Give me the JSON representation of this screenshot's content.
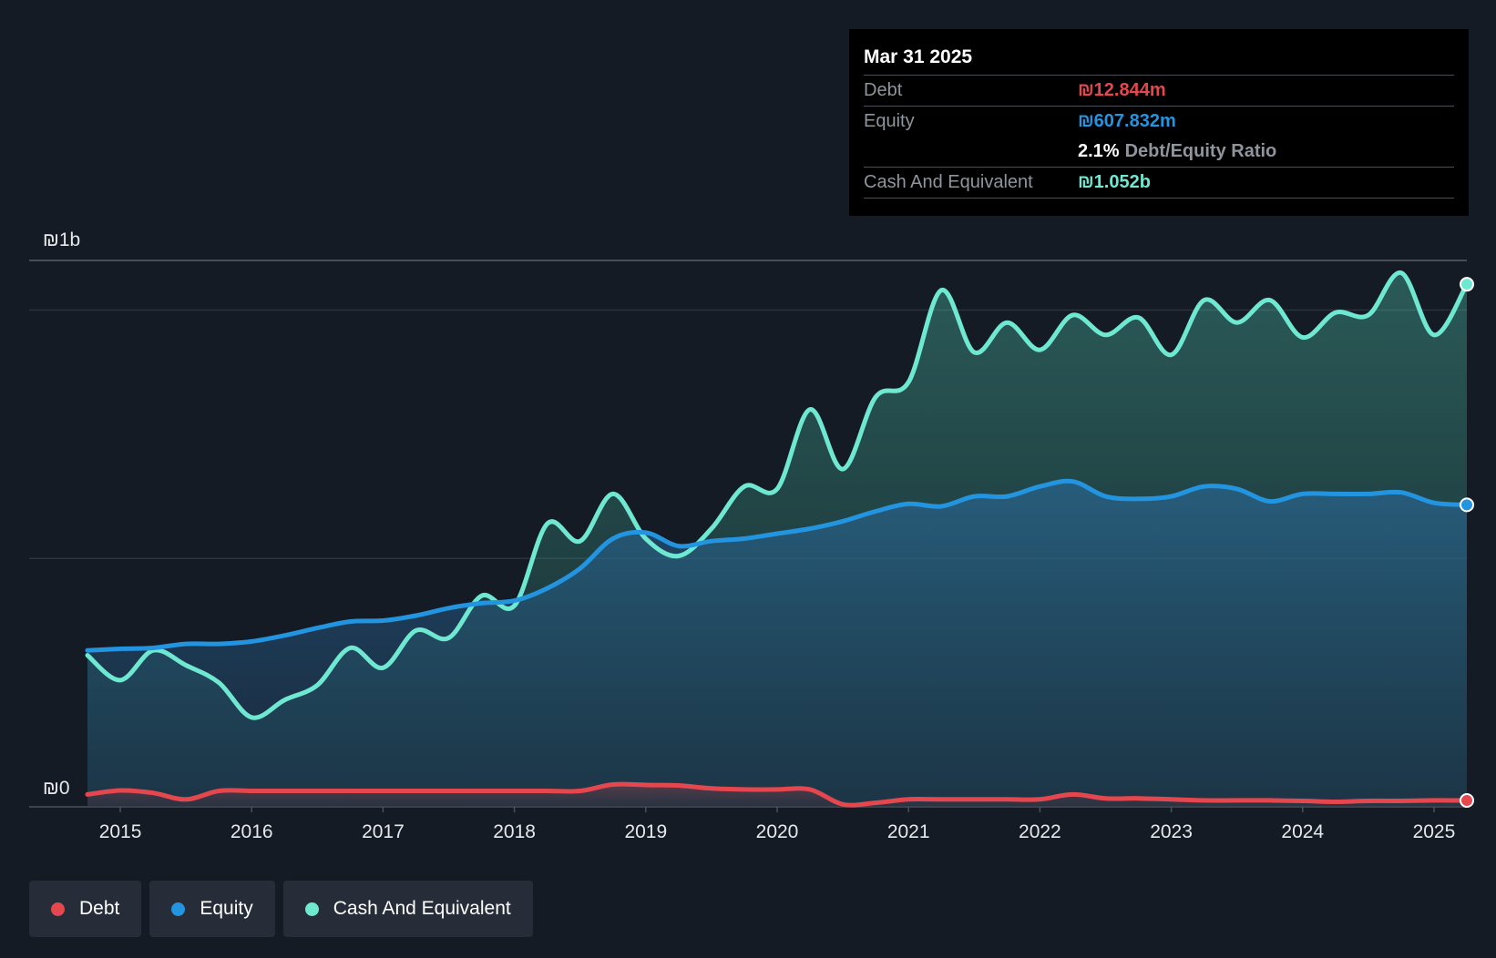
{
  "tooltip": {
    "date": "Mar 31 2025",
    "debt_label": "Debt",
    "debt_value": "₪12.844m",
    "equity_label": "Equity",
    "equity_value": "₪607.832m",
    "ratio_pct": "2.1%",
    "ratio_label": "Debt/Equity Ratio",
    "cash_label": "Cash And Equivalent",
    "cash_value": "₪1.052b"
  },
  "legend": {
    "debt": "Debt",
    "equity": "Equity",
    "cash": "Cash And Equivalent"
  },
  "colors": {
    "background": "#151b24",
    "debt": "#e5474f",
    "equity": "#2394df",
    "cash": "#6fe8d2"
  },
  "chart_data": {
    "type": "area",
    "title": "",
    "xlabel": "",
    "ylabel": "",
    "y_unit": "₪m",
    "ylim": [
      0,
      1100
    ],
    "y_tick_labels": [
      {
        "value": 0,
        "label": "₪0"
      },
      {
        "value": 1100,
        "label": "₪1b"
      }
    ],
    "gridlines": [
      500,
      1000,
      1100
    ],
    "xlim": [
      2014.75,
      2025.25
    ],
    "x_ticks": [
      2015,
      2016,
      2017,
      2018,
      2019,
      2020,
      2021,
      2022,
      2023,
      2024,
      2025
    ],
    "series": [
      {
        "name": "Cash And Equivalent",
        "color": "#6fe8d2",
        "x": [
          2014.75,
          2015.0,
          2015.25,
          2015.5,
          2015.75,
          2016.0,
          2016.25,
          2016.5,
          2016.75,
          2017.0,
          2017.25,
          2017.5,
          2017.75,
          2018.0,
          2018.25,
          2018.5,
          2018.75,
          2019.0,
          2019.25,
          2019.5,
          2019.75,
          2020.0,
          2020.25,
          2020.5,
          2020.75,
          2021.0,
          2021.25,
          2021.5,
          2021.75,
          2022.0,
          2022.25,
          2022.5,
          2022.75,
          2023.0,
          2023.25,
          2023.5,
          2023.75,
          2024.0,
          2024.25,
          2024.5,
          2024.75,
          2025.0,
          2025.25
        ],
        "values": [
          305,
          255,
          315,
          285,
          250,
          180,
          215,
          245,
          320,
          280,
          355,
          340,
          425,
          405,
          570,
          535,
          630,
          540,
          505,
          560,
          645,
          640,
          800,
          680,
          825,
          855,
          1040,
          915,
          975,
          920,
          990,
          950,
          985,
          910,
          1020,
          975,
          1020,
          945,
          995,
          990,
          1075,
          950,
          1052
        ]
      },
      {
        "name": "Equity",
        "color": "#2394df",
        "x": [
          2014.75,
          2015.0,
          2015.25,
          2015.5,
          2015.75,
          2016.0,
          2016.25,
          2016.5,
          2016.75,
          2017.0,
          2017.25,
          2017.5,
          2017.75,
          2018.0,
          2018.25,
          2018.5,
          2018.75,
          2019.0,
          2019.25,
          2019.5,
          2019.75,
          2020.0,
          2020.25,
          2020.5,
          2020.75,
          2021.0,
          2021.25,
          2021.5,
          2021.75,
          2022.0,
          2022.25,
          2022.5,
          2022.75,
          2023.0,
          2023.25,
          2023.5,
          2023.75,
          2024.0,
          2024.25,
          2024.5,
          2024.75,
          2025.0,
          2025.25
        ],
        "values": [
          315,
          318,
          320,
          328,
          328,
          333,
          345,
          360,
          373,
          375,
          385,
          400,
          410,
          415,
          440,
          480,
          540,
          552,
          525,
          535,
          540,
          550,
          560,
          575,
          595,
          610,
          605,
          625,
          625,
          645,
          655,
          625,
          620,
          625,
          645,
          640,
          615,
          630,
          630,
          630,
          633,
          612,
          608
        ]
      },
      {
        "name": "Debt",
        "color": "#e5474f",
        "x": [
          2014.75,
          2015.0,
          2015.25,
          2015.5,
          2015.75,
          2016.0,
          2016.25,
          2016.5,
          2016.75,
          2017.0,
          2017.25,
          2017.5,
          2017.75,
          2018.0,
          2018.25,
          2018.5,
          2018.75,
          2019.0,
          2019.25,
          2019.5,
          2019.75,
          2020.0,
          2020.25,
          2020.5,
          2020.75,
          2021.0,
          2021.25,
          2021.5,
          2021.75,
          2022.0,
          2022.25,
          2022.5,
          2022.75,
          2023.0,
          2023.25,
          2023.5,
          2023.75,
          2024.0,
          2024.25,
          2024.5,
          2024.75,
          2025.0,
          2025.25
        ],
        "values": [
          25,
          33,
          28,
          15,
          32,
          32,
          32,
          32,
          32,
          32,
          32,
          32,
          32,
          32,
          32,
          32,
          45,
          44,
          43,
          37,
          35,
          35,
          35,
          5,
          8,
          15,
          15,
          15,
          15,
          15,
          25,
          17,
          17,
          15,
          13,
          13,
          13,
          12,
          10,
          12,
          12,
          13,
          12.844
        ]
      }
    ]
  }
}
